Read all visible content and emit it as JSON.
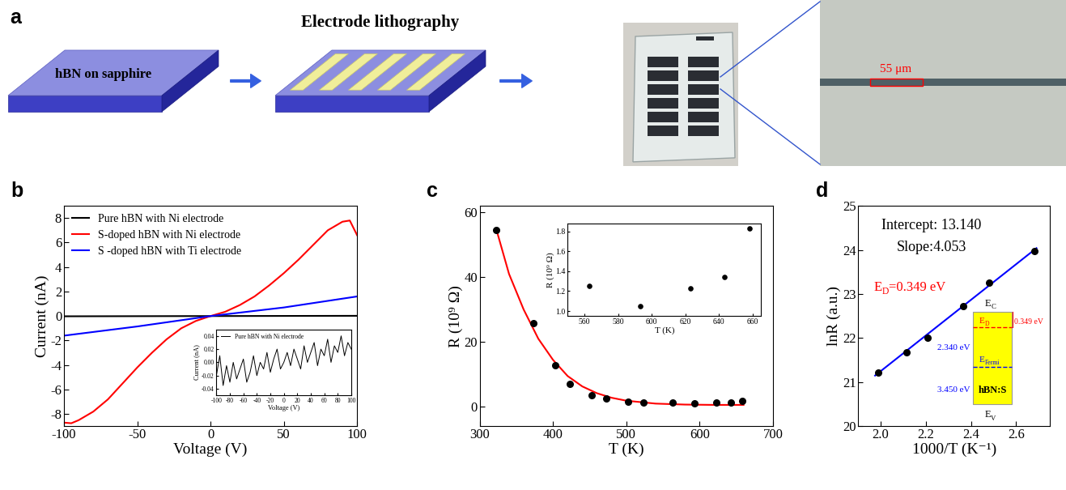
{
  "panel_a": {
    "label": "a",
    "title": "Electrode lithography",
    "substrate": "hBN on sapphire",
    "scale": "55 μm"
  },
  "chart_data": [
    {
      "panel": "b",
      "type": "line",
      "x_label": "Voltage (V)",
      "y_label": "Current (nA)",
      "xlim": [
        -100,
        100
      ],
      "xticks": [
        -100,
        -50,
        0,
        50,
        100
      ],
      "ylim": [
        -9,
        9
      ],
      "yticks": [
        -8,
        -6,
        -4,
        -2,
        0,
        2,
        4,
        6,
        8
      ],
      "legend": "upper left",
      "series": [
        {
          "name": "Pure hBN with Ni electrode",
          "color": "#000000",
          "x": [
            -100,
            -50,
            0,
            50,
            100
          ],
          "values": [
            -0.02,
            -0.01,
            0,
            0.01,
            0.02
          ]
        },
        {
          "name": "S-doped hBN with Ni electrode",
          "color": "#ff0000",
          "x": [
            -100,
            -95,
            -90,
            -80,
            -70,
            -60,
            -50,
            -40,
            -30,
            -20,
            -10,
            0,
            10,
            20,
            30,
            40,
            50,
            60,
            70,
            80,
            90,
            95,
            100
          ],
          "values": [
            -8.7,
            -8.75,
            -8.5,
            -7.8,
            -6.8,
            -5.5,
            -4.2,
            -3.0,
            -1.9,
            -1.0,
            -0.4,
            0,
            0.35,
            0.9,
            1.6,
            2.5,
            3.5,
            4.6,
            5.8,
            7.0,
            7.7,
            7.8,
            6.6
          ]
        },
        {
          "name": "S -doped hBN with Ti electrode",
          "color": "#0000ff",
          "x": [
            -100,
            -50,
            0,
            50,
            100
          ],
          "values": [
            -1.6,
            -0.85,
            0,
            0.7,
            1.6
          ]
        }
      ],
      "inset": {
        "type": "line",
        "x_label": "Voltage (V)",
        "y_label": "Current (nA)",
        "xlim": [
          -100,
          100
        ],
        "xticks": [
          -100,
          -80,
          -60,
          -40,
          -20,
          0,
          20,
          40,
          60,
          80,
          100
        ],
        "ylim": [
          -0.05,
          0.05
        ],
        "yticks": [
          {
            "value": -0.04,
            "label": "-0.04"
          },
          {
            "value": -0.02,
            "label": "-0.02"
          },
          {
            "value": 0,
            "label": "0.00"
          },
          {
            "value": 0.02,
            "label": "0.02"
          },
          {
            "value": 0.04,
            "label": "0.04"
          }
        ],
        "legend": "upper left",
        "series": [
          {
            "name": "Pure hBN with Ni electrode",
            "color": "#000000",
            "x": [
              -100,
              -95,
              -90,
              -85,
              -80,
              -75,
              -70,
              -65,
              -60,
              -55,
              -50,
              -45,
              -40,
              -35,
              -30,
              -25,
              -20,
              -15,
              -10,
              -5,
              0,
              5,
              10,
              15,
              20,
              25,
              30,
              35,
              40,
              45,
              50,
              55,
              60,
              65,
              70,
              75,
              80,
              85,
              90,
              95,
              100
            ],
            "values": [
              -0.02,
              0.01,
              -0.035,
              -0.005,
              -0.03,
              0.0,
              -0.025,
              -0.01,
              0.005,
              -0.03,
              -0.015,
              0.01,
              -0.02,
              0.0,
              -0.01,
              0.015,
              -0.015,
              0.005,
              0.02,
              -0.01,
              0.0,
              0.015,
              -0.005,
              0.02,
              0.005,
              -0.01,
              0.025,
              0.0,
              0.015,
              0.03,
              -0.005,
              0.02,
              0.01,
              0.035,
              0.0,
              0.025,
              0.015,
              0.04,
              0.01,
              0.03,
              0.02
            ]
          }
        ]
      }
    },
    {
      "panel": "c",
      "type": "scatter",
      "x_label": "T (K)",
      "y_label": "R (10⁹ Ω)",
      "xlim": [
        300,
        700
      ],
      "xticks": [
        300,
        400,
        500,
        600,
        700
      ],
      "ylim": [
        -6,
        62
      ],
      "yticks": [
        0,
        20,
        40,
        60
      ],
      "series": [
        {
          "type": "line",
          "color": "#ff0000",
          "x": [
            323,
            340,
            360,
            380,
            400,
            420,
            440,
            460,
            480,
            500,
            540,
            580,
            620,
            660
          ],
          "values": [
            54.5,
            41,
            30,
            21,
            14.5,
            9.5,
            6.3,
            4.2,
            2.8,
            1.9,
            1.0,
            0.7,
            0.6,
            0.6
          ]
        },
        {
          "type": "scatter",
          "color": "#000000",
          "marker": "circle",
          "x": [
            323,
            373,
            403,
            423,
            453,
            473,
            503,
            523,
            563,
            593,
            623,
            643,
            658
          ],
          "values": [
            54.5,
            25.7,
            12.7,
            7.2,
            3.6,
            2.7,
            1.7,
            1.4,
            1.25,
            1.05,
            1.23,
            1.34,
            1.83
          ]
        }
      ],
      "inset": {
        "type": "scatter",
        "x_label": "T (K)",
        "y_label": "R (10⁹ Ω)",
        "xlim": [
          550,
          665
        ],
        "xticks": [
          560,
          580,
          600,
          620,
          640,
          660
        ],
        "ylim": [
          0.95,
          1.88
        ],
        "yticks": [
          1.0,
          1.2,
          1.4,
          1.6,
          1.8
        ],
        "series": [
          {
            "type": "scatter",
            "color": "#000000",
            "marker": "circle",
            "x": [
              563,
              593,
              623,
              643,
              658
            ],
            "values": [
              1.25,
              1.05,
              1.23,
              1.34,
              1.83
            ]
          }
        ]
      }
    },
    {
      "panel": "d",
      "type": "scatter",
      "x_label": "1000/T (K⁻¹)",
      "y_label": "lnR (a.u.)",
      "xlim": [
        1.9,
        2.75
      ],
      "xticks": [
        2.0,
        2.2,
        2.4,
        2.6
      ],
      "ylim": [
        20,
        25
      ],
      "yticks": [
        20,
        21,
        22,
        23,
        24,
        25
      ],
      "series": [
        {
          "type": "line",
          "color": "#0000ff",
          "x": [
            1.975,
            2.69
          ],
          "values": [
            21.15,
            24.04
          ]
        },
        {
          "type": "scatter",
          "color": "#000000",
          "marker": "circle",
          "x": [
            1.988,
            2.114,
            2.208,
            2.364,
            2.481,
            2.681
          ],
          "values": [
            21.22,
            21.67,
            22.0,
            22.72,
            23.26,
            23.97
          ]
        }
      ],
      "annotations": [
        {
          "color": "#000000",
          "parts": [
            {
              "text": "Intercept: 13.140"
            }
          ]
        },
        {
          "color": "#000000",
          "parts": [
            {
              "text": "Slope:4.053"
            }
          ]
        },
        {
          "color": "#ff0000",
          "parts": [
            {
              "text": "E"
            },
            {
              "text": "D",
              "sub": true
            },
            {
              "text": "=0.349 eV"
            }
          ]
        }
      ],
      "band_diagram": {
        "conduction": [
          {
            "text": "E"
          },
          {
            "text": "C",
            "sub": true
          }
        ],
        "valence": [
          {
            "text": "E"
          },
          {
            "text": "V",
            "sub": true
          }
        ],
        "donor": [
          {
            "text": "E"
          },
          {
            "text": "D",
            "sub": true
          }
        ],
        "fermi": [
          {
            "text": "E"
          },
          {
            "text": "Fermi",
            "sub": true
          }
        ],
        "donor_gap": "0.349 eV",
        "upper_energy": "2.340 eV",
        "lower_energy": "3.450 eV",
        "material": "hBN:S"
      }
    }
  ]
}
